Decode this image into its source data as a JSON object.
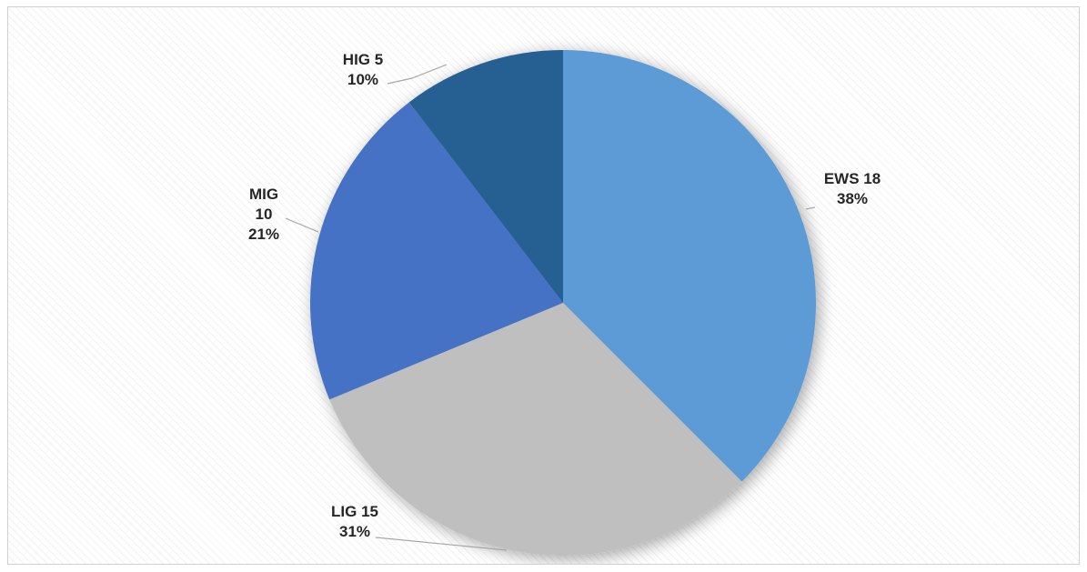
{
  "chart_data": {
    "type": "pie",
    "start_angle_deg": 0,
    "direction": "clockwise",
    "slices": [
      {
        "category": "EWS",
        "value": 18,
        "percent": "38%",
        "color": "#5b9bd5"
      },
      {
        "category": "LIG",
        "value": 15,
        "percent": "31%",
        "color": "#bfbfbf"
      },
      {
        "category": "MIG",
        "value": 10,
        "percent": "21%",
        "color": "#4472c4"
      },
      {
        "category": "HIG",
        "value": 5,
        "percent": "10%",
        "color": "#255e91"
      }
    ],
    "labels": [
      {
        "lines": [
          "EWS 18",
          "38%"
        ]
      },
      {
        "lines": [
          "LIG 15",
          "31%"
        ]
      },
      {
        "lines": [
          "MIG",
          "10",
          "21%"
        ]
      },
      {
        "lines": [
          "HIG 5",
          "10%"
        ]
      }
    ],
    "title": "",
    "legend": false,
    "data_labels": "outside with leader lines"
  }
}
